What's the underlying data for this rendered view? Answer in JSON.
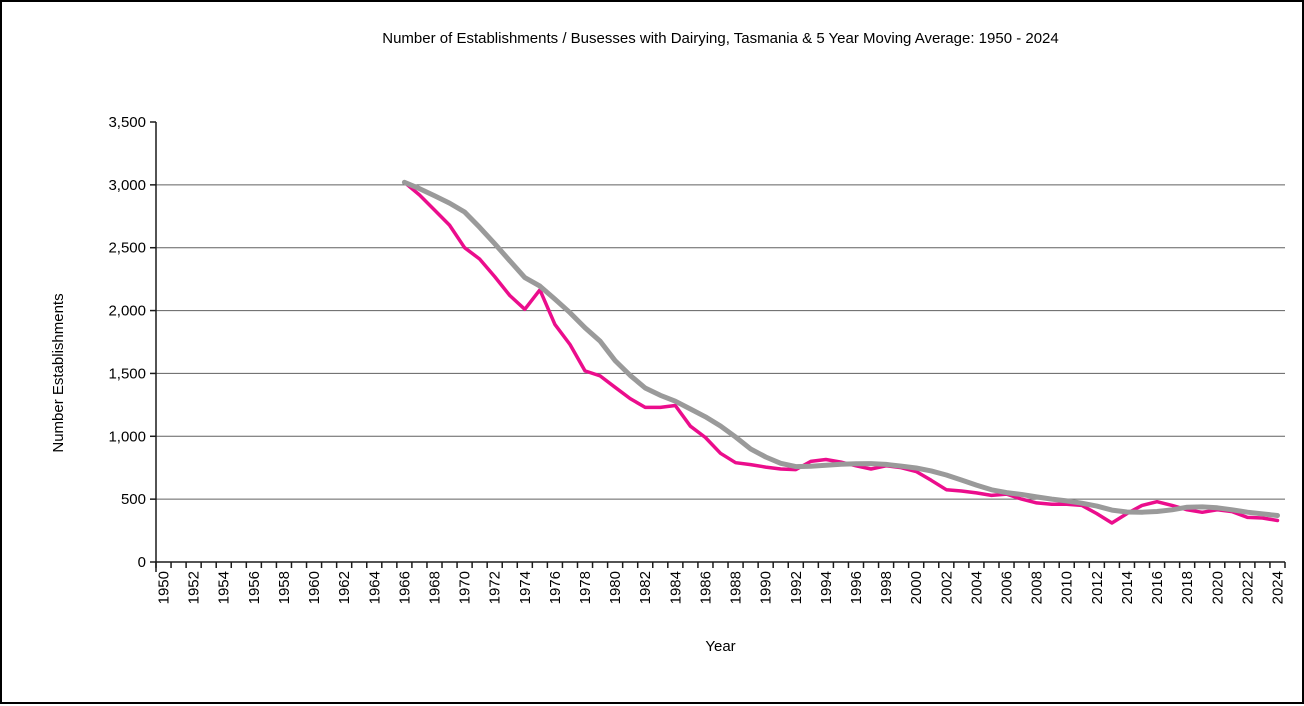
{
  "chart": {
    "title": "Number of Establishments / Busesses with Dairying, Tasmania & 5 Year Moving Average: 1950 - 2024",
    "background": "#ffffff",
    "border_color": "#000000",
    "gridline_color": "#606060",
    "axis_color": "#1a1a1a"
  },
  "chart_data": {
    "type": "line",
    "title": "Number of Establishments / Busesses with Dairying, Tasmania & 5 Year Moving Average: 1950 - 2024",
    "xlabel": "Year",
    "ylabel": "Number Establishments",
    "legend_position": "none",
    "grid": "horizontal",
    "x_axis_range": [
      1950,
      2024
    ],
    "x_tick_label_step": 2,
    "x_tick_labels": [
      "1950",
      "1952",
      "1954",
      "1956",
      "1958",
      "1960",
      "1962",
      "1964",
      "1966",
      "1968",
      "1970",
      "1972",
      "1974",
      "1976",
      "1978",
      "1980",
      "1982",
      "1984",
      "1986",
      "1988",
      "1990",
      "1992",
      "1994",
      "1996",
      "1998",
      "2000",
      "2002",
      "2004",
      "2006",
      "2008",
      "2010",
      "2012",
      "2014",
      "2016",
      "2018",
      "2020",
      "2022",
      "2024"
    ],
    "ylim": [
      0,
      3500
    ],
    "y_tick_step": 500,
    "y_tick_labels": [
      "0",
      "500",
      "1,000",
      "1,500",
      "2,000",
      "2,500",
      "3,000",
      "3,500"
    ],
    "gridline_values": [
      500,
      1000,
      1500,
      2000,
      2500,
      3000
    ],
    "x": [
      1966,
      1967,
      1968,
      1969,
      1970,
      1971,
      1972,
      1973,
      1974,
      1975,
      1976,
      1977,
      1978,
      1979,
      1980,
      1981,
      1982,
      1983,
      1984,
      1985,
      1986,
      1987,
      1988,
      1989,
      1990,
      1991,
      1992,
      1993,
      1994,
      1995,
      1996,
      1997,
      1998,
      1999,
      2000,
      2001,
      2002,
      2003,
      2004,
      2005,
      2006,
      2007,
      2008,
      2009,
      2010,
      2011,
      2012,
      2013,
      2014,
      2015,
      2016,
      2017,
      2018,
      2019,
      2020,
      2021,
      2022,
      2023,
      2024
    ],
    "series": [
      {
        "name": "Number of Establishments / Busesses with Dairying, Tasmania",
        "color": "#eb0d8c",
        "stroke_width": 3.5,
        "values": [
          3020,
          2920,
          2800,
          2680,
          2500,
          2410,
          2270,
          2120,
          2010,
          2165,
          1890,
          1730,
          1520,
          1480,
          1390,
          1300,
          1230,
          1230,
          1245,
          1080,
          990,
          865,
          790,
          775,
          755,
          740,
          735,
          800,
          815,
          795,
          765,
          740,
          765,
          750,
          720,
          650,
          575,
          565,
          550,
          530,
          540,
          500,
          470,
          460,
          460,
          450,
          385,
          310,
          385,
          450,
          480,
          450,
          415,
          395,
          415,
          400,
          355,
          350,
          330
        ]
      },
      {
        "name": "5 Year Moving Average",
        "color": "#9a9a9a",
        "stroke_width": 5,
        "values": [
          3020,
          2970,
          2913,
          2855,
          2784,
          2662,
          2532,
          2396,
          2262,
          2195,
          2091,
          1983,
          1863,
          1757,
          1602,
          1484,
          1384,
          1326,
          1279,
          1217,
          1155,
          1082,
          994,
          900,
          835,
          785,
          759,
          761,
          769,
          777,
          782,
          783,
          776,
          763,
          748,
          725,
          692,
          652,
          612,
          574,
          552,
          537,
          518,
          500,
          486,
          468,
          445,
          413,
          398,
          396,
          402,
          415,
          436,
          438,
          431,
          415,
          396,
          383,
          370
        ]
      }
    ]
  }
}
